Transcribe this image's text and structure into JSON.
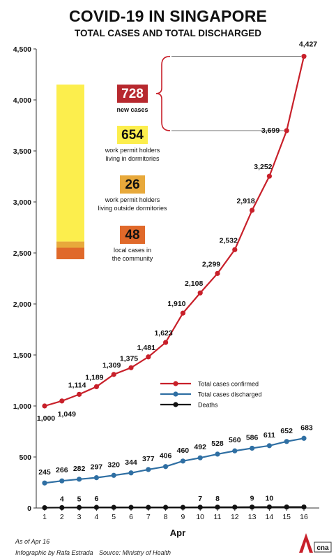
{
  "header": {
    "title": "COVID-19 IN SINGAPORE",
    "subtitle": "TOTAL CASES AND TOTAL DISCHARGED"
  },
  "footer": {
    "as_of": "As of Apr 16",
    "credit": "Infographic by Rafa Estrada",
    "source": "Source: Ministry of Health"
  },
  "breakdown": {
    "new_cases": {
      "value": "728",
      "label": "new cases",
      "color": "#b7282e"
    },
    "items": [
      {
        "value": "654",
        "label_lines": [
          "work permit holders",
          "living in dormitories"
        ],
        "color": "#fcee4d",
        "amount": 654
      },
      {
        "value": "26",
        "label_lines": [
          "work permit holders",
          "living outside dormitories"
        ],
        "color": "#e8a93b",
        "amount": 26
      },
      {
        "value": "48",
        "label_lines": [
          "local cases in",
          "the community"
        ],
        "color": "#e0692a",
        "amount": 48
      }
    ]
  },
  "chart_data": {
    "type": "line",
    "title": "COVID-19 IN SINGAPORE",
    "subtitle": "TOTAL CASES AND TOTAL DISCHARGED",
    "xlabel": "Apr",
    "ylabel": "",
    "x": [
      1,
      2,
      3,
      4,
      5,
      6,
      7,
      8,
      9,
      10,
      11,
      12,
      13,
      14,
      15,
      16
    ],
    "ylim": [
      0,
      4500
    ],
    "yticks": [
      0,
      500,
      1000,
      1500,
      2000,
      2500,
      3000,
      3500,
      4000,
      4500
    ],
    "ytick_labels": [
      "0",
      "500",
      "1,000",
      "1,500",
      "2,000",
      "2,500",
      "3,000",
      "3,500",
      "4,000",
      "4,500"
    ],
    "legend_position": "center-right",
    "series": [
      {
        "name": "Total cases confirmed",
        "color": "#c8202a",
        "values": [
          1000,
          1049,
          1114,
          1189,
          1309,
          1375,
          1481,
          1623,
          1910,
          2108,
          2299,
          2532,
          2918,
          3252,
          3699,
          4427
        ],
        "labels": [
          "1,000",
          "1,049",
          "1,114",
          "1,189",
          "1,309",
          "1,375",
          "1,481",
          "1,623",
          "1,910",
          "2,108",
          "2,299",
          "2,532",
          "2,918",
          "3,252",
          "3,699",
          "4,427"
        ]
      },
      {
        "name": "Total cases discharged",
        "color": "#2f6fa3",
        "values": [
          245,
          266,
          282,
          297,
          320,
          344,
          377,
          406,
          460,
          492,
          528,
          560,
          586,
          611,
          652,
          683
        ],
        "labels": [
          "245",
          "266",
          "282",
          "297",
          "320",
          "344",
          "377",
          "406",
          "460",
          "492",
          "528",
          "560",
          "586",
          "611",
          "652",
          "683"
        ]
      },
      {
        "name": "Deaths",
        "color": "#111111",
        "values": [
          3,
          4,
          5,
          6,
          6,
          6,
          6,
          6,
          6,
          7,
          8,
          8,
          9,
          10,
          10,
          10
        ],
        "labels": [
          "",
          "4",
          "5",
          "6",
          "",
          "",
          "",
          "",
          "",
          "7",
          "8",
          "",
          "9",
          "10",
          "",
          ""
        ]
      }
    ]
  }
}
